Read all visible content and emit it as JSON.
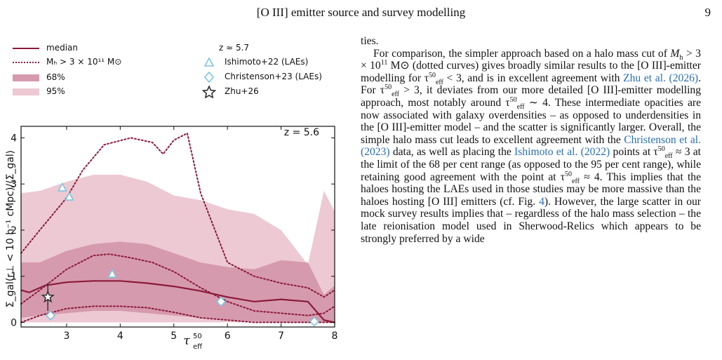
{
  "header": {
    "title": "[O III] emitter source and survey modelling",
    "page_number": "9"
  },
  "figure": {
    "legend": {
      "median": "median",
      "mass_cut": "Mₕ > 3 × 10¹¹ M⊙",
      "band68": "68%",
      "band95": "95%",
      "z_label": "z ≈ 5.7",
      "ishimoto": "Ishimoto+22 (LAEs)",
      "christenson": "Christenson+23 (LAEs)",
      "zhu": "Zhu+26"
    },
    "panel_label": "z = 5.6",
    "xlabel": "τ_eff^50",
    "ylabel": "Σ_gal(r⊥ < 10 h⁻¹ cMpc)/⟨Σ_gal⟩"
  },
  "chart_data": {
    "type": "line",
    "xlim": [
      2.15,
      8.0
    ],
    "ylim": [
      -0.1,
      4.25
    ],
    "xticks": [
      "3",
      "4",
      "5",
      "6",
      "7",
      "8"
    ],
    "xtick_values": [
      3,
      4,
      5,
      6,
      7,
      8
    ],
    "yticks": [
      "0",
      "1",
      "2",
      "3",
      "4"
    ],
    "ytick_values": [
      0,
      1,
      2,
      3,
      4
    ],
    "colors": {
      "median": "#8b1a3a",
      "band68": "#d69aae",
      "band95": "#ecc9d3",
      "ishimoto": "#7fc4dd",
      "christenson": "#7fc4dd",
      "zhu": "#333333"
    },
    "median": {
      "x": [
        2.15,
        2.3,
        2.6,
        3.0,
        3.5,
        4.0,
        4.5,
        5.0,
        5.5,
        6.0,
        6.5,
        7.0,
        7.5,
        7.8,
        8.0
      ],
      "y": [
        0.7,
        0.65,
        0.8,
        0.87,
        0.9,
        0.9,
        0.85,
        0.78,
        0.68,
        0.55,
        0.45,
        0.5,
        0.45,
        0.05,
        0.0
      ]
    },
    "band68": {
      "x": [
        2.15,
        2.5,
        3.0,
        3.5,
        4.0,
        4.5,
        5.0,
        5.5,
        6.0,
        6.5,
        7.0,
        7.5,
        7.8,
        8.0
      ],
      "upper": [
        1.3,
        1.3,
        1.55,
        1.7,
        1.75,
        1.7,
        1.5,
        1.3,
        1.2,
        1.15,
        1.35,
        1.3,
        0.6,
        0.8
      ],
      "lower": [
        0.1,
        0.15,
        0.2,
        0.25,
        0.25,
        0.2,
        0.15,
        0.1,
        0.05,
        0.02,
        0.0,
        0.0,
        0.0,
        0.0
      ]
    },
    "band95": {
      "x": [
        2.15,
        2.5,
        3.0,
        3.5,
        4.0,
        4.5,
        5.0,
        5.5,
        6.0,
        6.5,
        7.0,
        7.5,
        7.8,
        8.0
      ],
      "upper": [
        2.8,
        2.85,
        3.05,
        3.2,
        3.2,
        3.05,
        2.75,
        2.65,
        2.45,
        2.35,
        2.0,
        1.25,
        2.85,
        2.4
      ],
      "lower": [
        0.0,
        0.0,
        0.0,
        0.0,
        0.0,
        0.0,
        0.0,
        0.0,
        0.0,
        0.0,
        0.0,
        0.0,
        0.0,
        0.0
      ]
    },
    "mass_cut_upper": {
      "x": [
        2.15,
        2.5,
        3.0,
        3.3,
        3.7,
        4.2,
        4.6,
        4.8,
        5.0,
        5.25,
        5.5,
        6.0,
        6.5,
        7.0,
        7.5,
        7.8,
        8.0
      ],
      "y": [
        1.5,
        2.0,
        2.7,
        3.3,
        3.85,
        4.0,
        3.9,
        3.65,
        3.95,
        4.1,
        2.8,
        1.3,
        1.0,
        0.85,
        0.75,
        0.55,
        0.7
      ]
    },
    "mass_cut_median": {
      "x": [
        2.15,
        2.5,
        3.0,
        3.5,
        3.8,
        4.2,
        4.6,
        5.0,
        5.5,
        6.0,
        6.5,
        7.0,
        7.5,
        7.8,
        8.0
      ],
      "y": [
        0.4,
        0.7,
        1.15,
        1.45,
        1.48,
        1.4,
        1.3,
        1.1,
        0.75,
        0.45,
        0.25,
        0.2,
        0.15,
        0.2,
        0.35
      ]
    },
    "mass_cut_lower": {
      "x": [
        2.15,
        2.5,
        3.0,
        3.5,
        4.0,
        4.5,
        5.0,
        5.5,
        6.0,
        6.5,
        7.0,
        7.5,
        8.0
      ],
      "y": [
        0.0,
        0.15,
        0.3,
        0.35,
        0.35,
        0.32,
        0.22,
        0.1,
        0.05,
        0.0,
        0.0,
        0.0,
        0.0
      ]
    },
    "ishimoto": {
      "x": [
        2.92,
        3.05,
        3.85
      ],
      "y": [
        2.92,
        2.72,
        1.05
      ]
    },
    "christenson": {
      "x": [
        2.7,
        5.88,
        7.62
      ],
      "y": [
        0.15,
        0.45,
        0.02
      ]
    },
    "zhu": {
      "x": [
        2.65
      ],
      "y": [
        0.55
      ],
      "yerr": [
        0.3
      ]
    }
  },
  "body_text": {
    "p0": "ties.",
    "p1_a": "For comparison, the simpler approach based on a halo mass cut of ",
    "p1_b": "M",
    "p1_c": " > 3 × 10",
    "p1_d": "11",
    "p1_e": " M⊙ (dotted curves) gives broadly similar results to the [O III]-emitter modelling for τ",
    "p1_f": " < 3, and is in excellent agreement with ",
    "p1_ref1": "Zhu et al. (2026)",
    "p1_g": ". For τ",
    "p1_h": " > 3, it deviates from our more detailed [O III]-emitter modelling approach, most notably around τ",
    "p1_i": " ∼ 4. These intermediate opacities are now associated with galaxy overdensities – as opposed to underdensities in the [O III]-emitter model – and the scatter is significantly larger. Overall, the simple halo mass cut leads to excellent agreement with the ",
    "p1_ref2": "Christenson et al. (2023)",
    "p1_j": " data, as well as placing the ",
    "p1_ref3": "Ishimoto et al. (2022)",
    "p1_k": " points at τ",
    "p1_l": " ≈ 3 at the limit of the 68 per cent range (as opposed to the 95 per cent range), while retaining good agreement with the point at τ",
    "p1_m": " ≈ 4. This implies that the haloes hosting the LAEs used in those studies may be more massive than the haloes hosting [O III] emitters (cf. Fig. ",
    "p1_ref4": "4",
    "p1_n": "). However, the large scatter in our mock survey results implies that – regardless of the halo mass selection – the late reionisation model used in Sherwood-Relics which appears to be strongly preferred by a wide"
  }
}
